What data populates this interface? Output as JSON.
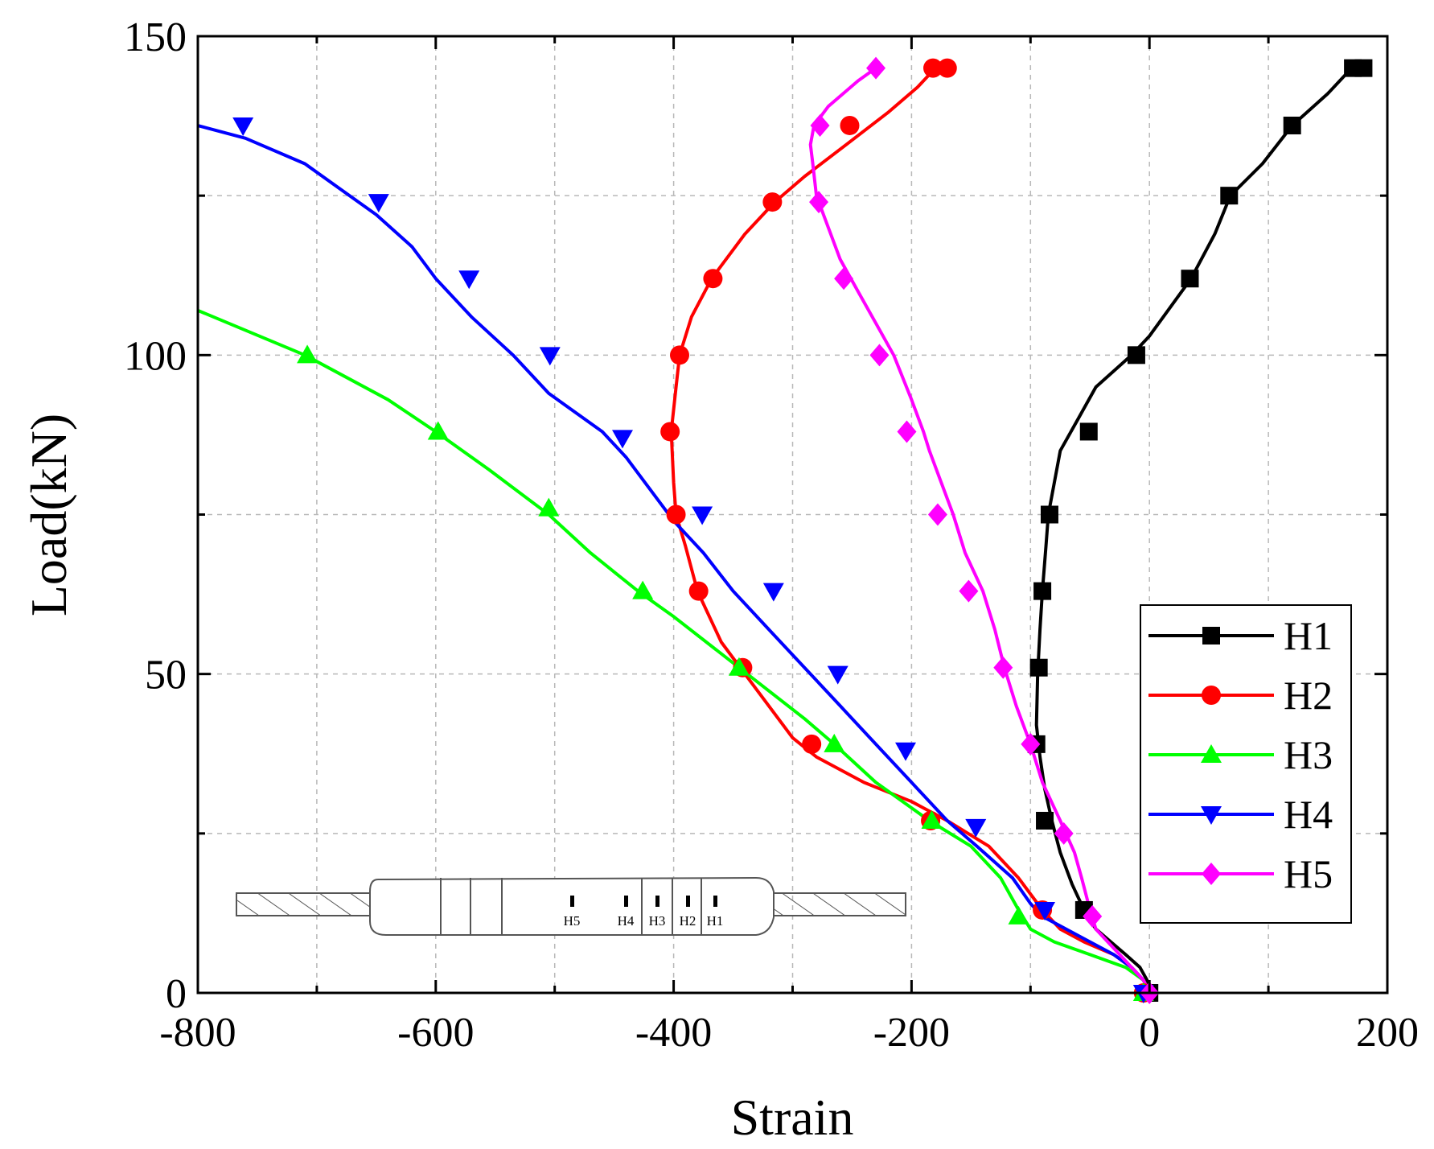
{
  "chart_data": {
    "type": "line",
    "title": "",
    "xlabel": "Strain",
    "ylabel": "Load(kN)",
    "xlim": [
      -800,
      200
    ],
    "ylim": [
      0,
      150
    ],
    "xticks": [
      -800,
      -600,
      -400,
      -200,
      0,
      200
    ],
    "yticks": [
      0,
      50,
      100,
      150
    ],
    "xtick_labels": [
      "-800",
      "-600",
      "-400",
      "-200",
      "0",
      "200"
    ],
    "ytick_labels": [
      "0",
      "50",
      "100",
      "150"
    ],
    "grid": true,
    "legend_position": "bottom-right",
    "series": [
      {
        "name": "H1",
        "color": "#000000",
        "marker": "square",
        "curve": [
          [
            0,
            0
          ],
          [
            -2,
            2
          ],
          [
            -8,
            4
          ],
          [
            -20,
            6
          ],
          [
            -45,
            10
          ],
          [
            -55,
            13
          ],
          [
            -65,
            17
          ],
          [
            -75,
            22
          ],
          [
            -82,
            27
          ],
          [
            -88,
            32
          ],
          [
            -92,
            37
          ],
          [
            -95,
            42
          ],
          [
            -94,
            50
          ],
          [
            -92,
            57
          ],
          [
            -90,
            63
          ],
          [
            -87,
            70
          ],
          [
            -85,
            75
          ],
          [
            -80,
            80
          ],
          [
            -75,
            85
          ],
          [
            -60,
            90
          ],
          [
            -45,
            95
          ],
          [
            -15,
            100
          ],
          [
            0,
            103
          ],
          [
            35,
            112
          ],
          [
            55,
            119
          ],
          [
            68,
            125
          ],
          [
            95,
            130
          ],
          [
            120,
            136
          ],
          [
            150,
            141
          ],
          [
            170,
            145
          ],
          [
            180,
            145
          ]
        ],
        "markers": [
          [
            0,
            0
          ],
          [
            -55,
            13
          ],
          [
            -88,
            27
          ],
          [
            -95,
            39
          ],
          [
            -93,
            51
          ],
          [
            -90,
            63
          ],
          [
            -84,
            75
          ],
          [
            -51,
            88
          ],
          [
            -11,
            100
          ],
          [
            34,
            112
          ],
          [
            67,
            125
          ],
          [
            120,
            136
          ],
          [
            171,
            145
          ],
          [
            180,
            145
          ]
        ]
      },
      {
        "name": "H2",
        "color": "#ff0000",
        "marker": "circle",
        "curve": [
          [
            0,
            0
          ],
          [
            -5,
            2
          ],
          [
            -15,
            4
          ],
          [
            -30,
            6
          ],
          [
            -55,
            8
          ],
          [
            -75,
            10
          ],
          [
            -90,
            13
          ],
          [
            -110,
            18
          ],
          [
            -135,
            23
          ],
          [
            -170,
            27
          ],
          [
            -200,
            30
          ],
          [
            -240,
            33
          ],
          [
            -280,
            37
          ],
          [
            -300,
            40
          ],
          [
            -320,
            45
          ],
          [
            -340,
            50
          ],
          [
            -360,
            55
          ],
          [
            -380,
            63
          ],
          [
            -390,
            70
          ],
          [
            -398,
            75
          ],
          [
            -400,
            80
          ],
          [
            -402,
            88
          ],
          [
            -398,
            95
          ],
          [
            -395,
            100
          ],
          [
            -385,
            106
          ],
          [
            -368,
            112
          ],
          [
            -340,
            119
          ],
          [
            -315,
            124
          ],
          [
            -290,
            128
          ],
          [
            -255,
            133
          ],
          [
            -220,
            138
          ],
          [
            -195,
            142
          ],
          [
            -180,
            145
          ],
          [
            -170,
            145
          ]
        ],
        "markers": [
          [
            -5,
            0
          ],
          [
            -90,
            13
          ],
          [
            -184,
            27
          ],
          [
            -284,
            39
          ],
          [
            -342,
            51
          ],
          [
            -379,
            63
          ],
          [
            -398,
            75
          ],
          [
            -403,
            88
          ],
          [
            -395,
            100
          ],
          [
            -367,
            112
          ],
          [
            -317,
            124
          ],
          [
            -252,
            136
          ],
          [
            -182,
            145
          ],
          [
            -170,
            145
          ]
        ]
      },
      {
        "name": "H3",
        "color": "#00ff00",
        "marker": "triangle-up",
        "curve": [
          [
            0,
            0
          ],
          [
            -5,
            2
          ],
          [
            -20,
            4
          ],
          [
            -50,
            6
          ],
          [
            -80,
            8
          ],
          [
            -100,
            10
          ],
          [
            -110,
            13
          ],
          [
            -125,
            18
          ],
          [
            -150,
            23
          ],
          [
            -185,
            27
          ],
          [
            -230,
            33
          ],
          [
            -265,
            39
          ],
          [
            -290,
            43
          ],
          [
            -345,
            51
          ],
          [
            -400,
            59
          ],
          [
            -430,
            63
          ],
          [
            -470,
            69
          ],
          [
            -505,
            75
          ],
          [
            -555,
            82
          ],
          [
            -600,
            88
          ],
          [
            -640,
            93
          ],
          [
            -710,
            100
          ],
          [
            -800,
            107
          ]
        ],
        "markers": [
          [
            -5,
            0
          ],
          [
            -110,
            12
          ],
          [
            -183,
            27
          ],
          [
            -265,
            39
          ],
          [
            -345,
            51
          ],
          [
            -426,
            63
          ],
          [
            -505,
            76
          ],
          [
            -598,
            88
          ],
          [
            -708,
            100
          ]
        ]
      },
      {
        "name": "H4",
        "color": "#0000ff",
        "marker": "triangle-down",
        "curve": [
          [
            0,
            0
          ],
          [
            -5,
            2
          ],
          [
            -15,
            4
          ],
          [
            -30,
            6
          ],
          [
            -50,
            8
          ],
          [
            -70,
            10
          ],
          [
            -90,
            12
          ],
          [
            -100,
            14
          ],
          [
            -115,
            18
          ],
          [
            -145,
            23
          ],
          [
            -170,
            27
          ],
          [
            -200,
            33
          ],
          [
            -230,
            39
          ],
          [
            -260,
            45
          ],
          [
            -290,
            51
          ],
          [
            -320,
            57
          ],
          [
            -350,
            63
          ],
          [
            -375,
            69
          ],
          [
            -400,
            74
          ],
          [
            -420,
            79
          ],
          [
            -440,
            84
          ],
          [
            -460,
            88
          ],
          [
            -505,
            94
          ],
          [
            -535,
            100
          ],
          [
            -570,
            106
          ],
          [
            -600,
            112
          ],
          [
            -620,
            117
          ],
          [
            -650,
            122
          ],
          [
            -680,
            126
          ],
          [
            -710,
            130
          ],
          [
            -760,
            134
          ],
          [
            -800,
            136
          ]
        ],
        "markers": [
          [
            -5,
            0
          ],
          [
            -88,
            13
          ],
          [
            -146,
            26
          ],
          [
            -205,
            38
          ],
          [
            -262,
            50
          ],
          [
            -316,
            63
          ],
          [
            -376,
            75
          ],
          [
            -443,
            87
          ],
          [
            -504,
            100
          ],
          [
            -572,
            112
          ],
          [
            -648,
            124
          ],
          [
            -762,
            136
          ]
        ]
      },
      {
        "name": "H5",
        "color": "#ff00ff",
        "marker": "diamond",
        "curve": [
          [
            0,
            0
          ],
          [
            -5,
            2
          ],
          [
            -15,
            4
          ],
          [
            -25,
            6
          ],
          [
            -35,
            8
          ],
          [
            -45,
            10
          ],
          [
            -50,
            13
          ],
          [
            -57,
            18
          ],
          [
            -63,
            22
          ],
          [
            -75,
            27
          ],
          [
            -90,
            33
          ],
          [
            -100,
            39
          ],
          [
            -112,
            45
          ],
          [
            -122,
            51
          ],
          [
            -130,
            57
          ],
          [
            -140,
            63
          ],
          [
            -155,
            69
          ],
          [
            -165,
            75
          ],
          [
            -175,
            80
          ],
          [
            -185,
            85
          ],
          [
            -190,
            88
          ],
          [
            -200,
            93
          ],
          [
            -215,
            100
          ],
          [
            -230,
            105
          ],
          [
            -245,
            110
          ],
          [
            -260,
            115
          ],
          [
            -270,
            120
          ],
          [
            -280,
            125
          ],
          [
            -283,
            130
          ],
          [
            -285,
            133
          ],
          [
            -282,
            136
          ],
          [
            -270,
            139
          ],
          [
            -245,
            143
          ],
          [
            -230,
            145
          ]
        ],
        "markers": [
          [
            0,
            0
          ],
          [
            -48,
            12
          ],
          [
            -72,
            25
          ],
          [
            -100,
            39
          ],
          [
            -123,
            51
          ],
          [
            -152,
            63
          ],
          [
            -178,
            75
          ],
          [
            -204,
            88
          ],
          [
            -227,
            100
          ],
          [
            -257,
            112
          ],
          [
            -278,
            124
          ],
          [
            -277,
            136
          ],
          [
            -230,
            145
          ]
        ]
      }
    ]
  },
  "inset": {
    "gauges": [
      "H5",
      "H4",
      "H3",
      "H2",
      "H1"
    ]
  }
}
